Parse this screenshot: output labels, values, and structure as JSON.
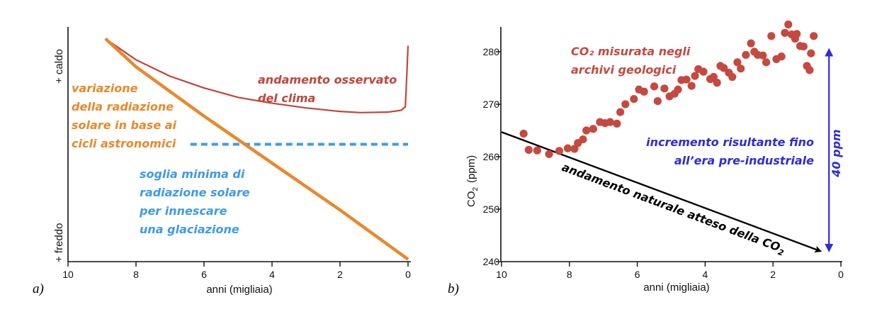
{
  "panels": {
    "a": {
      "label": "a)"
    },
    "b": {
      "label": "b)"
    }
  },
  "colors": {
    "solar": "#e8892c",
    "observed": "#c2453a",
    "threshold": "#3d9be9",
    "co2_points": "#c5493f",
    "trend": "#000000",
    "increment": "#2f2cd6"
  },
  "chart_data": [
    {
      "type": "line",
      "xlabel": "anni (migliaia)",
      "ylabel_top": "+ caldo",
      "ylabel_bottom": "+ freddo",
      "xlim": [
        10,
        0
      ],
      "xticks": [
        "10",
        "8",
        "6",
        "4",
        "2",
        "0"
      ],
      "ylim": [
        0,
        1
      ],
      "yticks_shown": false,
      "series": [
        {
          "name": "variazione della radiazione solare in base ai cicli astronomici",
          "label_lines": [
            "variazione",
            "della radiazione",
            "solare in base ai",
            "cicli astronomici"
          ],
          "x": [
            8.9,
            8.0,
            6.0,
            4.0,
            2.0,
            0.0
          ],
          "y": [
            0.95,
            0.83,
            0.62,
            0.42,
            0.22,
            0.01
          ]
        },
        {
          "name": "andamento osservato del clima",
          "label_lines": [
            "andamento osservato",
            "del clima"
          ],
          "x": [
            8.9,
            8.0,
            7.0,
            6.0,
            5.0,
            4.0,
            3.0,
            2.0,
            1.4,
            0.6,
            0.2,
            0.08,
            0.05,
            0.0
          ],
          "y": [
            0.95,
            0.86,
            0.79,
            0.74,
            0.7,
            0.675,
            0.655,
            0.64,
            0.635,
            0.637,
            0.645,
            0.66,
            0.75,
            0.92
          ]
        },
        {
          "name": "soglia minima di radiazione solare per innescare una glaciazione",
          "label_lines": [
            "soglia minima di",
            "radiazione solare",
            "per innescare",
            "una glaciazione"
          ],
          "style": "dashed",
          "x": [
            6.4,
            0.0
          ],
          "y": [
            0.5,
            0.5
          ]
        }
      ]
    },
    {
      "type": "scatter",
      "xlabel": "anni (migliaia)",
      "ylabel": "CO₂ (ppm)",
      "ylabel_main": "CO",
      "ylabel_sub": "2",
      "ylabel_unit": "(ppm)",
      "xlim": [
        10,
        0
      ],
      "ylim": [
        240,
        285
      ],
      "xticks": [
        "10",
        "8",
        "6",
        "4",
        "2",
        "0"
      ],
      "yticks": [
        "240",
        "250",
        "260",
        "270",
        "280"
      ],
      "series": [
        {
          "name": "CO₂ misurata negli archivi geologici",
          "label_lines": [
            "CO₂ misurata negli",
            "archivi geologici"
          ],
          "points": [
            [
              9.35,
              264.4
            ],
            [
              9.2,
              261.3
            ],
            [
              8.95,
              261.2
            ],
            [
              8.6,
              260.5
            ],
            [
              8.3,
              261.1
            ],
            [
              8.05,
              261.6
            ],
            [
              7.85,
              261.5
            ],
            [
              7.75,
              262.6
            ],
            [
              7.6,
              263.3
            ],
            [
              7.5,
              265.0
            ],
            [
              7.3,
              265.3
            ],
            [
              7.1,
              266.6
            ],
            [
              6.95,
              266.4
            ],
            [
              6.8,
              266.6
            ],
            [
              6.6,
              266.3
            ],
            [
              6.5,
              268.5
            ],
            [
              6.35,
              270.0
            ],
            [
              6.1,
              271.0
            ],
            [
              5.95,
              272.8
            ],
            [
              5.8,
              272.4
            ],
            [
              5.5,
              273.4
            ],
            [
              5.4,
              270.6
            ],
            [
              5.2,
              273.0
            ],
            [
              5.05,
              271.5
            ],
            [
              4.9,
              272.0
            ],
            [
              4.8,
              272.8
            ],
            [
              4.7,
              274.6
            ],
            [
              4.55,
              274.7
            ],
            [
              4.4,
              273.5
            ],
            [
              4.3,
              275.4
            ],
            [
              4.2,
              276.7
            ],
            [
              4.05,
              276.2
            ],
            [
              3.85,
              274.8
            ],
            [
              3.75,
              275.2
            ],
            [
              3.65,
              274.1
            ],
            [
              3.55,
              277.3
            ],
            [
              3.45,
              276.9
            ],
            [
              3.3,
              276.0
            ],
            [
              3.2,
              275.2
            ],
            [
              3.05,
              278.0
            ],
            [
              2.95,
              276.8
            ],
            [
              2.8,
              279.4
            ],
            [
              2.65,
              281.6
            ],
            [
              2.55,
              280.0
            ],
            [
              2.45,
              279.4
            ],
            [
              2.3,
              279.3
            ],
            [
              2.2,
              278.0
            ],
            [
              2.05,
              283.0
            ],
            [
              1.9,
              278.6
            ],
            [
              1.75,
              279.1
            ],
            [
              1.65,
              283.6
            ],
            [
              1.55,
              285.2
            ],
            [
              1.45,
              283.3
            ],
            [
              1.35,
              282.5
            ],
            [
              1.3,
              283.4
            ],
            [
              1.2,
              281.1
            ],
            [
              1.1,
              281.0
            ],
            [
              1.0,
              277.3
            ],
            [
              0.92,
              276.5
            ],
            [
              0.88,
              279.7
            ],
            [
              0.8,
              283.0
            ]
          ]
        },
        {
          "name": "andamento naturale atteso della CO₂",
          "label_main": "andamento naturale atteso della CO",
          "label_sub": "2",
          "style": "arrow",
          "x": [
            10.0,
            0.6
          ],
          "y": [
            264.7,
            242.0
          ]
        },
        {
          "name": "incremento risultante fino all’era pre-industriale",
          "label_lines": [
            "incremento risultante fino",
            "all’era pre-industriale"
          ],
          "style": "double-arrow",
          "value_label": "40 ppm",
          "x": [
            0.35,
            0.35
          ],
          "y": [
            281.0,
            241.5
          ]
        }
      ]
    }
  ]
}
